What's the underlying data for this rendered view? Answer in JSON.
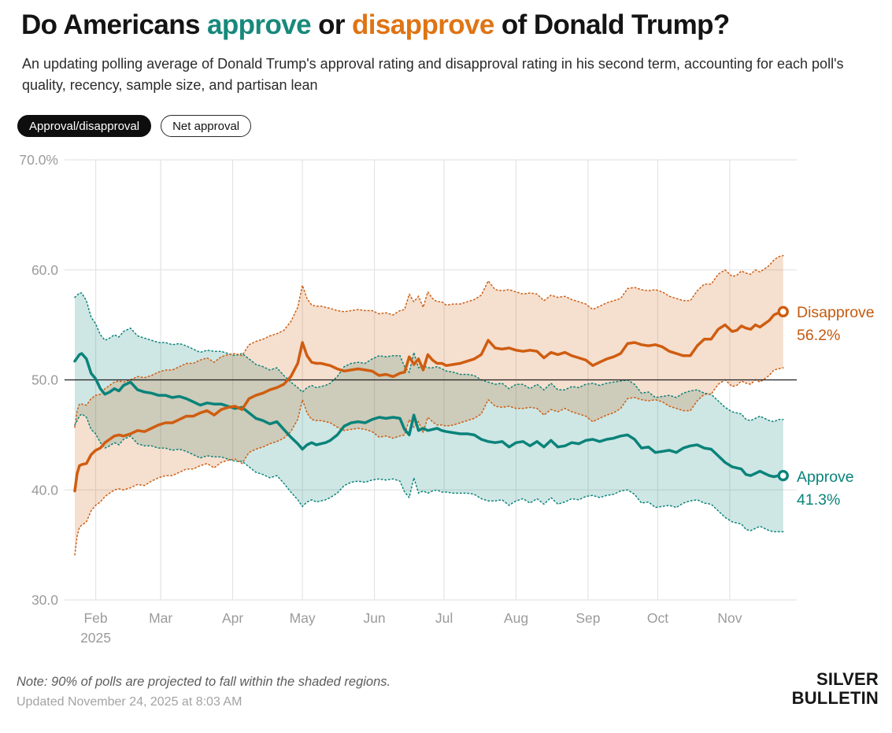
{
  "title": {
    "part1": "Do Americans ",
    "approve_word": "approve",
    "part2": " or ",
    "disapprove_word": "disapprove",
    "part3": " of Donald Trump?",
    "approve_color": "#17897c",
    "disapprove_color": "#df7414"
  },
  "subtitle": "An updating polling average of Donald Trump's approval rating and disapproval rating in his second term, accounting for each poll's quality, recency, sample size, and partisan lean",
  "toggle": {
    "options": [
      {
        "label": "Approval/disapproval",
        "selected": true
      },
      {
        "label": "Net approval",
        "selected": false
      }
    ]
  },
  "footer": {
    "note": "Note: 90% of polls are projected to fall within the shaded regions.",
    "updated": "Updated November 24, 2025 at 8:03 AM",
    "logo_line1": "SILVER",
    "logo_line2": "BULLETIN"
  },
  "chart_data": {
    "type": "line",
    "title": "Do Americans approve or disapprove of Donald Trump?",
    "x_axis": {
      "unit": "days since Jan 23, 2025",
      "months": [
        {
          "label": "Feb",
          "sub": "2025",
          "day": 9
        },
        {
          "label": "Mar",
          "day": 37
        },
        {
          "label": "Apr",
          "day": 68
        },
        {
          "label": "May",
          "day": 98
        },
        {
          "label": "Jun",
          "day": 129
        },
        {
          "label": "Jul",
          "day": 159
        },
        {
          "label": "Aug",
          "day": 190
        },
        {
          "label": "Sep",
          "day": 221
        },
        {
          "label": "Oct",
          "day": 251
        },
        {
          "label": "Nov",
          "day": 282
        }
      ]
    },
    "y_axis": {
      "range": [
        30,
        70
      ],
      "ticks": [
        {
          "value": 70,
          "label": "70.0%"
        },
        {
          "value": 60,
          "label": "60.0"
        },
        {
          "value": 50,
          "label": "50.0"
        },
        {
          "value": 40,
          "label": "40.0"
        },
        {
          "value": 30,
          "label": "30.0"
        }
      ]
    },
    "reference_line": 50,
    "grid": true,
    "legend_position": "right-end-labels",
    "band_note": "90% of polls are projected to fall within the shaded regions",
    "days": [
      0,
      1,
      2,
      3,
      5,
      7,
      9,
      11,
      13,
      15,
      17,
      19,
      21,
      24,
      27,
      30,
      33,
      36,
      39,
      42,
      45,
      48,
      51,
      54,
      57,
      60,
      63,
      66,
      69,
      72,
      75,
      78,
      81,
      84,
      87,
      90,
      93,
      96,
      98,
      100,
      102,
      104,
      106,
      108,
      110,
      113,
      116,
      119,
      122,
      125,
      128,
      131,
      134,
      137,
      140,
      142,
      144,
      146,
      148,
      150,
      152,
      154,
      156,
      158,
      160,
      163,
      166,
      169,
      172,
      175,
      178,
      181,
      184,
      187,
      190,
      193,
      196,
      199,
      202,
      205,
      208,
      211,
      214,
      217,
      220,
      223,
      226,
      229,
      232,
      235,
      238,
      241,
      244,
      247,
      250,
      253,
      256,
      259,
      262,
      265,
      268,
      271,
      274,
      277,
      280,
      283,
      285,
      287,
      289,
      291,
      293,
      295,
      297,
      299,
      301,
      303,
      305
    ],
    "band_halfwidth": [
      5.8,
      5.7,
      5.6,
      5.5,
      5.3,
      5.1,
      5.0,
      4.9,
      4.9,
      4.9,
      4.9,
      4.9,
      4.9,
      4.9,
      4.9,
      4.9,
      4.8,
      4.8,
      4.8,
      4.8,
      4.8,
      4.8,
      4.8,
      4.8,
      4.8,
      4.8,
      4.8,
      4.8,
      4.8,
      4.9,
      4.9,
      4.9,
      4.9,
      4.9,
      4.9,
      4.9,
      5.0,
      5.1,
      5.2,
      5.2,
      5.2,
      5.2,
      5.2,
      5.2,
      5.2,
      5.3,
      5.4,
      5.4,
      5.4,
      5.4,
      5.5,
      5.6,
      5.6,
      5.6,
      5.7,
      5.7,
      5.7,
      5.7,
      5.7,
      5.7,
      5.7,
      5.6,
      5.6,
      5.6,
      5.5,
      5.5,
      5.4,
      5.4,
      5.4,
      5.4,
      5.4,
      5.3,
      5.3,
      5.3,
      5.3,
      5.2,
      5.2,
      5.2,
      5.2,
      5.2,
      5.2,
      5.1,
      5.1,
      5.1,
      5.1,
      5.1,
      5.1,
      5.1,
      5.1,
      5.0,
      5.0,
      5.0,
      5.0,
      5.0,
      5.0,
      5.0,
      5.0,
      5.0,
      5.0,
      5.0,
      5.0,
      5.0,
      5.0,
      5.0,
      5.0,
      5.0,
      5.0,
      5.0,
      5.0,
      5.0,
      5.0,
      5.0,
      5.0,
      5.0,
      5.0,
      5.1,
      5.1
    ],
    "series": [
      {
        "name": "Disapprove",
        "end_label": "Disapprove",
        "end_value": 56.2,
        "end_value_label": "56.2%",
        "color": "#cf5d10",
        "values": [
          39.9,
          41.5,
          42.2,
          42.3,
          42.4,
          43.2,
          43.6,
          43.8,
          44.3,
          44.6,
          44.9,
          45.0,
          44.9,
          45.1,
          45.4,
          45.3,
          45.6,
          45.9,
          46.1,
          46.1,
          46.4,
          46.7,
          46.7,
          47.0,
          47.2,
          46.8,
          47.3,
          47.5,
          47.6,
          47.3,
          48.3,
          48.6,
          48.8,
          49.1,
          49.3,
          49.6,
          50.3,
          51.5,
          53.4,
          52.2,
          51.6,
          51.5,
          51.5,
          51.4,
          51.3,
          51.0,
          50.8,
          50.9,
          51.0,
          50.9,
          50.8,
          50.4,
          50.5,
          50.3,
          50.6,
          50.7,
          52.1,
          51.4,
          51.9,
          50.9,
          52.3,
          51.8,
          51.5,
          51.5,
          51.3,
          51.4,
          51.5,
          51.7,
          51.9,
          52.3,
          53.6,
          52.9,
          52.8,
          52.9,
          52.7,
          52.6,
          52.7,
          52.6,
          52.0,
          52.5,
          52.3,
          52.5,
          52.2,
          52.0,
          51.8,
          51.3,
          51.6,
          51.9,
          52.1,
          52.4,
          53.3,
          53.4,
          53.2,
          53.1,
          53.2,
          53.0,
          52.6,
          52.4,
          52.2,
          52.2,
          53.1,
          53.7,
          53.7,
          54.6,
          55.0,
          54.4,
          54.5,
          54.9,
          54.7,
          54.6,
          55.0,
          54.8,
          55.1,
          55.4,
          55.9,
          56.1,
          56.2
        ]
      },
      {
        "name": "Approve",
        "end_label": "Approve",
        "end_value": 41.3,
        "end_value_label": "41.3%",
        "color": "#0a837a",
        "values": [
          51.7,
          52.0,
          52.3,
          52.4,
          51.9,
          50.6,
          50.1,
          49.2,
          48.7,
          48.9,
          49.2,
          49.0,
          49.5,
          49.8,
          49.1,
          48.9,
          48.8,
          48.6,
          48.6,
          48.4,
          48.5,
          48.3,
          48.0,
          47.7,
          47.9,
          47.8,
          47.8,
          47.6,
          47.4,
          47.5,
          47.0,
          46.5,
          46.3,
          46.0,
          46.2,
          45.5,
          44.8,
          44.2,
          43.7,
          44.1,
          44.3,
          44.1,
          44.2,
          44.3,
          44.5,
          45.0,
          45.8,
          46.1,
          46.2,
          46.1,
          46.4,
          46.6,
          46.5,
          46.6,
          46.5,
          45.5,
          45.0,
          46.8,
          45.4,
          45.6,
          45.4,
          45.5,
          45.6,
          45.4,
          45.3,
          45.2,
          45.1,
          45.1,
          45.0,
          44.6,
          44.4,
          44.3,
          44.4,
          43.9,
          44.3,
          44.4,
          44.0,
          44.4,
          43.9,
          44.5,
          43.9,
          44.0,
          44.3,
          44.2,
          44.5,
          44.6,
          44.4,
          44.6,
          44.7,
          44.9,
          45.0,
          44.6,
          43.8,
          43.9,
          43.4,
          43.5,
          43.6,
          43.4,
          43.8,
          44.0,
          44.1,
          43.8,
          43.7,
          43.1,
          42.5,
          42.1,
          42.0,
          41.9,
          41.4,
          41.3,
          41.5,
          41.7,
          41.5,
          41.3,
          41.2,
          41.3,
          41.3
        ]
      }
    ],
    "colors": {
      "grid": "#e4e4e4",
      "axis_text": "#9b9b9b",
      "reference_line": "#1f1f1f",
      "approve_band_fill": "#c9e4e2",
      "disapprove_band_fill": "#f4dbca"
    }
  }
}
